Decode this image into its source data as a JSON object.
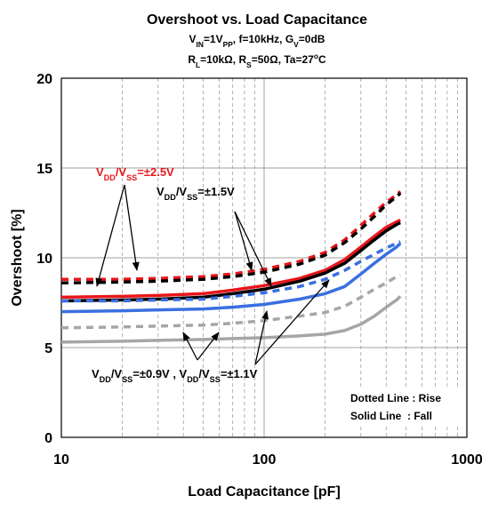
{
  "chart_data": {
    "type": "line",
    "title": "Overshoot vs. Load Capacitance",
    "subtitle_lines": [
      [
        {
          "t": "V"
        },
        {
          "t": "IN",
          "sub": true
        },
        {
          "t": "=1V"
        },
        {
          "t": "PP",
          "sub": true
        },
        {
          "t": ", f=10kHz, G"
        },
        {
          "t": "V",
          "sub": true
        },
        {
          "t": "=0dB"
        }
      ],
      [
        {
          "t": "R"
        },
        {
          "t": "L",
          "sub": true
        },
        {
          "t": "=10kΩ, R"
        },
        {
          "t": "S",
          "sub": true
        },
        {
          "t": "=50Ω, Ta=27"
        },
        {
          "t": "o",
          "sup": true
        },
        {
          "t": "C"
        }
      ]
    ],
    "xlabel": "Load Capacitance [pF]",
    "ylabel": "Overshoot [%]",
    "x_scale": "log",
    "xlim": [
      10,
      1000
    ],
    "ylim": [
      0,
      20
    ],
    "x_ticks": [
      10,
      100,
      1000
    ],
    "x_tick_labels": [
      "10",
      "100",
      "1000"
    ],
    "y_ticks": [
      0,
      5,
      10,
      15,
      20
    ],
    "y_tick_labels": [
      "0",
      "5",
      "10",
      "15",
      "20"
    ],
    "grid": true,
    "x": [
      10,
      20,
      30,
      50,
      70,
      100,
      150,
      200,
      250,
      300,
      350,
      400,
      450,
      470
    ],
    "series": [
      {
        "group": "±2.5V",
        "style": "dotted",
        "color": "#e8161b",
        "values": [
          8.8,
          8.8,
          8.85,
          8.95,
          9.1,
          9.35,
          9.8,
          10.3,
          11.0,
          11.8,
          12.5,
          13.1,
          13.5,
          13.7
        ]
      },
      {
        "group": "±2.5V",
        "style": "solid",
        "color": "#e8161b",
        "values": [
          7.8,
          7.85,
          7.9,
          8.0,
          8.2,
          8.45,
          8.85,
          9.3,
          9.9,
          10.6,
          11.2,
          11.7,
          12.0,
          12.1
        ]
      },
      {
        "group": "±1.5V",
        "style": "dotted",
        "color": "#000000",
        "values": [
          8.6,
          8.65,
          8.7,
          8.8,
          8.95,
          9.2,
          9.65,
          10.15,
          10.85,
          11.6,
          12.3,
          12.95,
          13.4,
          13.6
        ]
      },
      {
        "group": "±1.5V",
        "style": "solid",
        "color": "#000000",
        "values": [
          7.6,
          7.65,
          7.7,
          7.8,
          8.0,
          8.25,
          8.7,
          9.15,
          9.7,
          10.4,
          11.0,
          11.5,
          11.85,
          11.95
        ]
      },
      {
        "group": "±1.1V",
        "style": "dotted",
        "color": "#3a6fe0",
        "values": [
          7.6,
          7.6,
          7.65,
          7.7,
          7.85,
          8.05,
          8.4,
          8.8,
          9.3,
          9.8,
          10.2,
          10.55,
          10.8,
          10.9
        ]
      },
      {
        "group": "±1.1V",
        "style": "solid",
        "color": "#3a6fe0",
        "values": [
          7.0,
          7.05,
          7.1,
          7.15,
          7.25,
          7.4,
          7.7,
          8.0,
          8.4,
          9.1,
          9.7,
          10.2,
          10.6,
          10.8
        ]
      },
      {
        "group": "±0.9V",
        "style": "dotted",
        "color": "#a6a6a6",
        "values": [
          6.1,
          6.15,
          6.2,
          6.25,
          6.35,
          6.5,
          6.75,
          6.95,
          7.3,
          7.8,
          8.25,
          8.6,
          8.95,
          9.05
        ]
      },
      {
        "group": "±0.9V",
        "style": "solid",
        "color": "#a6a6a6",
        "values": [
          5.3,
          5.35,
          5.4,
          5.45,
          5.5,
          5.55,
          5.65,
          5.75,
          5.95,
          6.3,
          6.75,
          7.25,
          7.65,
          7.85
        ]
      }
    ],
    "annotations": [
      {
        "id": "vdd25",
        "color": "#e8161b",
        "parts": [
          {
            "t": "V"
          },
          {
            "t": "DD",
            "sub": true
          },
          {
            "t": "/V"
          },
          {
            "t": "SS",
            "sub": true
          },
          {
            "t": "=±2.5V"
          }
        ]
      },
      {
        "id": "vdd15",
        "color": "#000000",
        "parts": [
          {
            "t": "V"
          },
          {
            "t": "DD",
            "sub": true
          },
          {
            "t": "/V"
          },
          {
            "t": "SS",
            "sub": true
          },
          {
            "t": "=±1.5V"
          }
        ]
      },
      {
        "id": "vdd09_11",
        "color": "#000000",
        "parts": [
          {
            "t": "V"
          },
          {
            "t": "DD",
            "sub": true
          },
          {
            "t": "/V"
          },
          {
            "t": "SS",
            "sub": true
          },
          {
            "t": "=±0.9V , V"
          },
          {
            "t": "DD",
            "sub": true
          },
          {
            "t": "/V"
          },
          {
            "t": "SS",
            "sub": true
          },
          {
            "t": "=±1.1V"
          }
        ]
      }
    ],
    "legend_notes": [
      "Dotted Line : Rise",
      "Solid Line  : Fall"
    ]
  }
}
